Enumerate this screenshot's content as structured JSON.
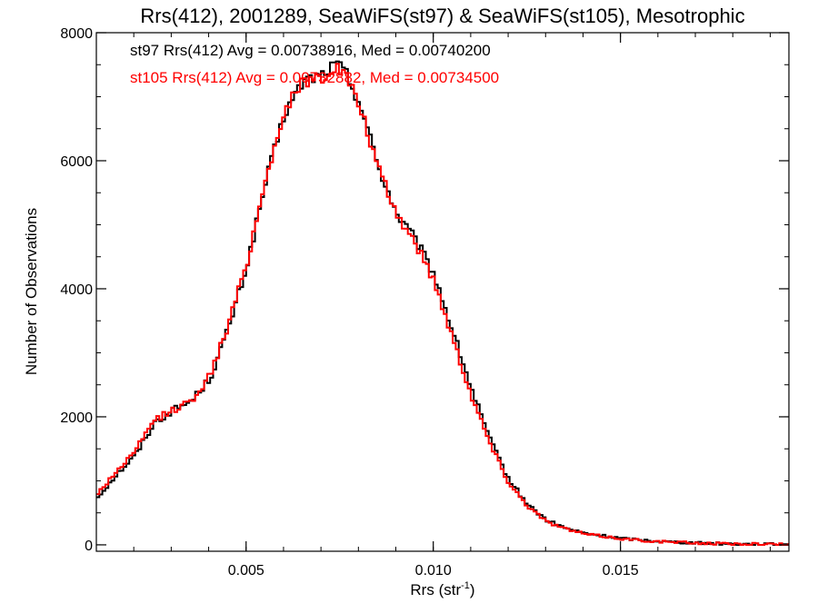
{
  "chart_data": {
    "type": "line",
    "title": "Rrs(412), 2001289, SeaWiFS(st97) & SeaWiFS(st105), Mesotrophic",
    "xlabel": "Rrs (str",
    "xlabel_sup": "-1",
    "xlabel_close": ")",
    "ylabel": "Number of Observations",
    "xlim": [
      0.001,
      0.0195
    ],
    "ylim": [
      -100,
      8000
    ],
    "grid": false,
    "x_ticks": [
      {
        "value": 0.005,
        "label": "0.005"
      },
      {
        "value": 0.01,
        "label": "0.010"
      },
      {
        "value": 0.015,
        "label": "0.015"
      }
    ],
    "y_ticks": [
      {
        "value": 0,
        "label": "0"
      },
      {
        "value": 2000,
        "label": "2000"
      },
      {
        "value": 4000,
        "label": "4000"
      },
      {
        "value": 6000,
        "label": "6000"
      },
      {
        "value": 8000,
        "label": "8000"
      }
    ],
    "x_minor_step": 0.001,
    "y_minor_step": 500,
    "annotations": [
      {
        "text": "st97 Rrs(412) Avg = 0.00738916, Med = 0.00740200",
        "color": "#000000"
      },
      {
        "text": "st105 Rrs(412) Avg = 0.00732882, Med = 0.00734500",
        "color": "#ff0000"
      }
    ],
    "series": [
      {
        "color": "#000000",
        "x": [
          0.001,
          0.0015,
          0.002,
          0.0025,
          0.003,
          0.0035,
          0.004,
          0.0045,
          0.005,
          0.0055,
          0.006,
          0.0065,
          0.007,
          0.0072,
          0.0074,
          0.0076,
          0.008,
          0.0085,
          0.009,
          0.0095,
          0.01,
          0.0105,
          0.011,
          0.0115,
          0.012,
          0.0125,
          0.013,
          0.0135,
          0.014,
          0.015,
          0.016,
          0.017,
          0.018,
          0.019,
          0.0195
        ],
        "y": [
          750,
          1100,
          1400,
          1900,
          2100,
          2250,
          2600,
          3400,
          4400,
          5700,
          6750,
          7250,
          7350,
          7450,
          7500,
          7400,
          6900,
          5900,
          5150,
          4750,
          4200,
          3300,
          2400,
          1600,
          1000,
          620,
          380,
          260,
          180,
          100,
          55,
          30,
          15,
          8,
          5
        ]
      },
      {
        "color": "#ff0000",
        "x": [
          0.001,
          0.0015,
          0.002,
          0.0025,
          0.003,
          0.0035,
          0.004,
          0.0045,
          0.005,
          0.0055,
          0.006,
          0.0065,
          0.007,
          0.0072,
          0.0074,
          0.0076,
          0.008,
          0.0085,
          0.009,
          0.0095,
          0.01,
          0.0105,
          0.011,
          0.0115,
          0.012,
          0.0125,
          0.013,
          0.0135,
          0.014,
          0.015,
          0.016,
          0.017,
          0.018,
          0.019,
          0.0195
        ],
        "y": [
          800,
          1150,
          1450,
          1950,
          2100,
          2250,
          2650,
          3450,
          4450,
          5750,
          6800,
          7250,
          7300,
          7400,
          7450,
          7350,
          6850,
          5850,
          5150,
          4700,
          4100,
          3200,
          2300,
          1550,
          950,
          600,
          360,
          250,
          170,
          95,
          50,
          28,
          14,
          7,
          5
        ]
      }
    ]
  }
}
